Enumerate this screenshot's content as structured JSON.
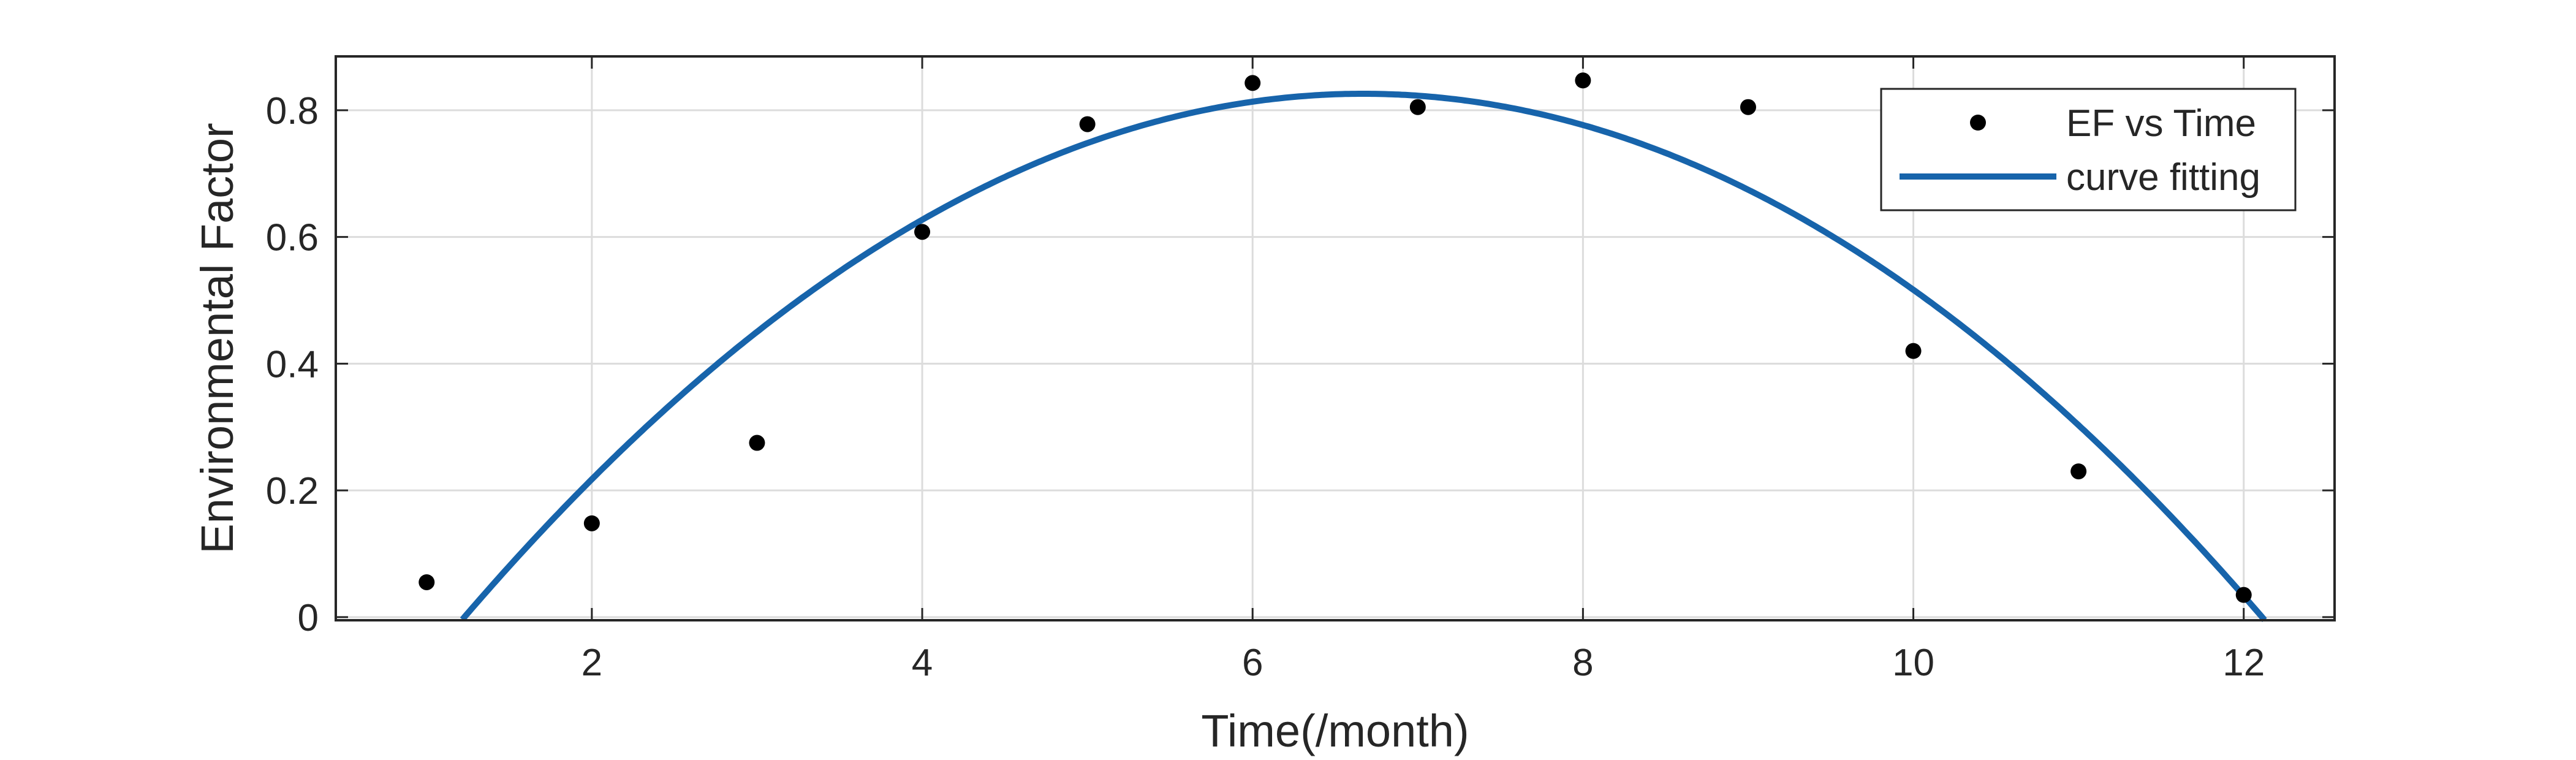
{
  "chart_data": {
    "type": "scatter",
    "title": "",
    "xlabel": "Time(/month)",
    "ylabel": "Environmental Factor",
    "xlim": [
      0.45,
      12.55
    ],
    "ylim": [
      -0.005,
      0.885
    ],
    "x_ticks": [
      2,
      4,
      6,
      8,
      10,
      12
    ],
    "y_ticks": [
      0,
      0.2,
      0.4,
      0.6,
      0.8
    ],
    "x_tick_labels": [
      "2",
      "4",
      "6",
      "8",
      "10",
      "12"
    ],
    "y_tick_labels": [
      "0",
      "0.2",
      "0.4",
      "0.6",
      "0.8"
    ],
    "grid": true,
    "legend_position": "top-right",
    "series": [
      {
        "name": "EF vs Time",
        "kind": "scatter",
        "color": "#000000",
        "x": [
          1,
          2,
          3,
          4,
          5,
          6,
          7,
          8,
          9,
          10,
          11,
          12
        ],
        "y": [
          0.055,
          0.148,
          0.275,
          0.608,
          0.778,
          0.843,
          0.805,
          0.847,
          0.805,
          0.42,
          0.23,
          0.035
        ]
      },
      {
        "name": "curve fitting",
        "kind": "line",
        "color": "#1764AB",
        "model": "quadratic",
        "vertex_x": 6.67,
        "vertex_y": 0.826,
        "a": -0.0279
      }
    ]
  }
}
